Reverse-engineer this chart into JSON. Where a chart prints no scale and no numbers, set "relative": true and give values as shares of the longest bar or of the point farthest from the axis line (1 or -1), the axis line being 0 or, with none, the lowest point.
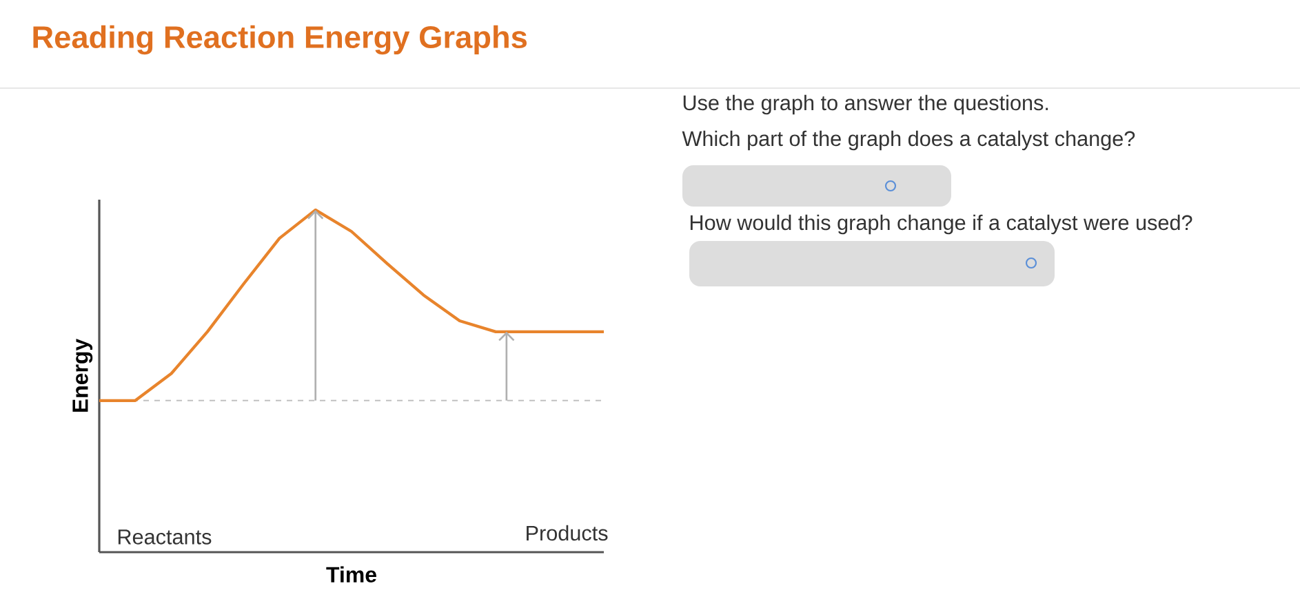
{
  "chart_data": {
    "type": "line",
    "title": "Reading Reaction Energy Graphs",
    "xlabel": "Time",
    "ylabel": "Energy",
    "relative": true,
    "categories": [
      null,
      null,
      null,
      null,
      null,
      null,
      null,
      null,
      null,
      null,
      null,
      null,
      null,
      null,
      null
    ],
    "series": [
      {
        "color": "#e8842c",
        "values": [
          0.443,
          0.443,
          0.522,
          0.644,
          0.783,
          0.917,
          1,
          0.937,
          0.842,
          0.751,
          0.676,
          0.644,
          0.644,
          0.644,
          0.644
        ]
      }
    ],
    "ref_lines": [
      {
        "axis": "y",
        "value": 0.443,
        "color": "#c0c0c0",
        "line_style": "dashed"
      }
    ],
    "annotations": [
      "Reactants",
      "Products",
      "Use the graph to answer the questions.",
      "Which part of the graph does a catalyst change?",
      "How would this graph change if a catalyst were used?"
    ]
  }
}
